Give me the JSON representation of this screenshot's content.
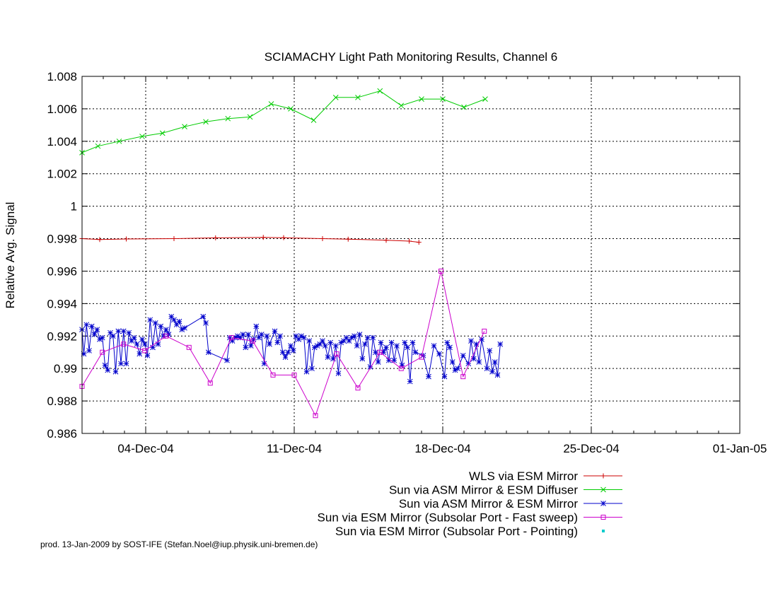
{
  "chart_data": {
    "type": "line",
    "title": "SCIAMACHY Light Path Monitoring Results, Channel 6",
    "xlabel": "",
    "ylabel": "Relative Avg. Signal",
    "x_is_date": true,
    "xlim": [
      "2004-12-01",
      "2005-01-01"
    ],
    "ylim": [
      0.986,
      1.008
    ],
    "yticks": [
      0.986,
      0.988,
      0.99,
      0.992,
      0.994,
      0.996,
      0.998,
      1,
      1.002,
      1.004,
      1.006,
      1.008
    ],
    "ytick_labels": [
      "0.986",
      "0.988",
      "0.99",
      "0.992",
      "0.994",
      "0.996",
      "0.998",
      "1",
      "1.002",
      "1.004",
      "1.006",
      "1.008"
    ],
    "xticks": [
      "2004-12-04",
      "2004-12-11",
      "2004-12-18",
      "2004-12-25",
      "2005-01-01"
    ],
    "xtick_labels": [
      "04-Dec-04",
      "11-Dec-04",
      "18-Dec-04",
      "25-Dec-04",
      "01-Jan-05"
    ],
    "grid": true,
    "legend_position": "bottom-right",
    "series": [
      {
        "name": "WLS via ESM Mirror",
        "color": "#cc0000",
        "marker": "plus",
        "points": [
          [
            "2004-12-01T00:00",
            0.998
          ],
          [
            "2004-12-01T20:00",
            0.99795
          ],
          [
            "2004-12-03T02:00",
            0.99798
          ],
          [
            "2004-12-05T08:00",
            0.998
          ],
          [
            "2004-12-07T07:00",
            0.99805
          ],
          [
            "2004-12-09T13:00",
            0.99808
          ],
          [
            "2004-12-10T12:00",
            0.99806
          ],
          [
            "2004-12-12T08:00",
            0.998
          ],
          [
            "2004-12-13T13:00",
            0.99797
          ],
          [
            "2004-12-15T08:00",
            0.9979
          ],
          [
            "2004-12-16T10:00",
            0.99785
          ],
          [
            "2004-12-16T21:00",
            0.99778
          ]
        ]
      },
      {
        "name": "Sun via ASM Mirror & ESM Diffuser",
        "color": "#00cc00",
        "marker": "x",
        "points": [
          [
            "2004-12-01T00:00",
            1.0033
          ],
          [
            "2004-12-01T18:00",
            1.0037
          ],
          [
            "2004-12-02T18:00",
            1.004
          ],
          [
            "2004-12-03T20:00",
            1.0043
          ],
          [
            "2004-12-04T19:00",
            1.0045
          ],
          [
            "2004-12-05T20:00",
            1.0049
          ],
          [
            "2004-12-06T20:00",
            1.0052
          ],
          [
            "2004-12-07T21:00",
            1.0054
          ],
          [
            "2004-12-08T22:00",
            1.0055
          ],
          [
            "2004-12-09T22:00",
            1.0063
          ],
          [
            "2004-12-10T20:00",
            1.006
          ],
          [
            "2004-12-11T22:00",
            1.0053
          ],
          [
            "2004-12-12T23:00",
            1.0067
          ],
          [
            "2004-12-14T00:00",
            1.0067
          ],
          [
            "2004-12-15T01:00",
            1.0071
          ],
          [
            "2004-12-16T01:00",
            1.0062
          ],
          [
            "2004-12-17T00:00",
            1.0066
          ],
          [
            "2004-12-18T00:00",
            1.0066
          ],
          [
            "2004-12-19T00:00",
            1.0061
          ],
          [
            "2004-12-20T00:00",
            1.0066
          ]
        ]
      },
      {
        "name": "Sun via ASM Mirror & ESM Mirror",
        "color": "#0000cc",
        "marker": "star",
        "points": [
          [
            "2004-12-01T00:00",
            0.9924
          ],
          [
            "2004-12-01T02:00",
            0.9909
          ],
          [
            "2004-12-01T05:00",
            0.9927
          ],
          [
            "2004-12-01T08:00",
            0.9911
          ],
          [
            "2004-12-01T11:00",
            0.9926
          ],
          [
            "2004-12-01T14:00",
            0.9921
          ],
          [
            "2004-12-01T17:00",
            0.9924
          ],
          [
            "2004-12-01T20:00",
            0.9918
          ],
          [
            "2004-12-01T23:00",
            0.9919
          ],
          [
            "2004-12-02T02:00",
            0.9902
          ],
          [
            "2004-12-02T05:00",
            0.9899
          ],
          [
            "2004-12-02T08:00",
            0.9922
          ],
          [
            "2004-12-02T11:00",
            0.992
          ],
          [
            "2004-12-02T14:00",
            0.9898
          ],
          [
            "2004-12-02T17:00",
            0.9923
          ],
          [
            "2004-12-02T20:00",
            0.9903
          ],
          [
            "2004-12-02T23:00",
            0.9923
          ],
          [
            "2004-12-03T02:00",
            0.9903
          ],
          [
            "2004-12-03T05:00",
            0.9922
          ],
          [
            "2004-12-03T08:00",
            0.9917
          ],
          [
            "2004-12-03T11:00",
            0.9919
          ],
          [
            "2004-12-03T14:00",
            0.9915
          ],
          [
            "2004-12-03T17:00",
            0.9909
          ],
          [
            "2004-12-03T20:00",
            0.9918
          ],
          [
            "2004-12-03T23:00",
            0.9915
          ],
          [
            "2004-12-04T02:00",
            0.9908
          ],
          [
            "2004-12-04T05:00",
            0.993
          ],
          [
            "2004-12-04T08:00",
            0.9913
          ],
          [
            "2004-12-04T11:00",
            0.9928
          ],
          [
            "2004-12-04T14:00",
            0.9915
          ],
          [
            "2004-12-04T17:00",
            0.9926
          ],
          [
            "2004-12-04T20:00",
            0.992
          ],
          [
            "2004-12-04T23:00",
            0.9924
          ],
          [
            "2004-12-05T02:00",
            0.9921
          ],
          [
            "2004-12-05T05:00",
            0.9932
          ],
          [
            "2004-12-05T08:00",
            0.993
          ],
          [
            "2004-12-05T11:00",
            0.9927
          ],
          [
            "2004-12-05T14:00",
            0.9929
          ],
          [
            "2004-12-05T17:00",
            0.9924
          ],
          [
            "2004-12-05T20:00",
            0.9925
          ],
          [
            "2004-12-06T17:00",
            0.9932
          ],
          [
            "2004-12-06T20:00",
            0.9928
          ],
          [
            "2004-12-06T23:00",
            0.991
          ],
          [
            "2004-12-07T20:00",
            0.9905
          ],
          [
            "2004-12-07T23:00",
            0.9919
          ],
          [
            "2004-12-08T02:00",
            0.9917
          ],
          [
            "2004-12-08T05:00",
            0.9919
          ],
          [
            "2004-12-08T08:00",
            0.992
          ],
          [
            "2004-12-08T11:00",
            0.9919
          ],
          [
            "2004-12-08T14:00",
            0.9921
          ],
          [
            "2004-12-08T17:00",
            0.9913
          ],
          [
            "2004-12-08T20:00",
            0.9921
          ],
          [
            "2004-12-08T23:00",
            0.9914
          ],
          [
            "2004-12-09T02:00",
            0.9918
          ],
          [
            "2004-12-09T05:00",
            0.9926
          ],
          [
            "2004-12-09T08:00",
            0.9919
          ],
          [
            "2004-12-09T11:00",
            0.9921
          ],
          [
            "2004-12-09T14:00",
            0.9903
          ],
          [
            "2004-12-09T17:00",
            0.992
          ],
          [
            "2004-12-09T20:00",
            0.9915
          ],
          [
            "2004-12-10T02:00",
            0.9923
          ],
          [
            "2004-12-10T05:00",
            0.9916
          ],
          [
            "2004-12-10T08:00",
            0.992
          ],
          [
            "2004-12-10T11:00",
            0.991
          ],
          [
            "2004-12-10T14:00",
            0.9907
          ],
          [
            "2004-12-10T17:00",
            0.991
          ],
          [
            "2004-12-10T20:00",
            0.9914
          ],
          [
            "2004-12-10T23:00",
            0.9911
          ],
          [
            "2004-12-11T02:00",
            0.992
          ],
          [
            "2004-12-11T05:00",
            0.9918
          ],
          [
            "2004-12-11T08:00",
            0.992
          ],
          [
            "2004-12-11T11:00",
            0.9919
          ],
          [
            "2004-12-11T14:00",
            0.9898
          ],
          [
            "2004-12-11T17:00",
            0.9917
          ],
          [
            "2004-12-11T20:00",
            0.99
          ],
          [
            "2004-12-11T23:00",
            0.9913
          ],
          [
            "2004-12-12T02:00",
            0.9914
          ],
          [
            "2004-12-12T05:00",
            0.9915
          ],
          [
            "2004-12-12T08:00",
            0.9917
          ],
          [
            "2004-12-12T11:00",
            0.9914
          ],
          [
            "2004-12-12T14:00",
            0.9907
          ],
          [
            "2004-12-12T17:00",
            0.9916
          ],
          [
            "2004-12-12T20:00",
            0.9906
          ],
          [
            "2004-12-12T23:00",
            0.9914
          ],
          [
            "2004-12-13T02:00",
            0.9897
          ],
          [
            "2004-12-13T05:00",
            0.9916
          ],
          [
            "2004-12-13T08:00",
            0.9917
          ],
          [
            "2004-12-13T11:00",
            0.9919
          ],
          [
            "2004-12-13T14:00",
            0.9917
          ],
          [
            "2004-12-13T17:00",
            0.9919
          ],
          [
            "2004-12-13T20:00",
            0.992
          ],
          [
            "2004-12-13T23:00",
            0.9914
          ],
          [
            "2004-12-14T02:00",
            0.9921
          ],
          [
            "2004-12-14T05:00",
            0.9906
          ],
          [
            "2004-12-14T08:00",
            0.9915
          ],
          [
            "2004-12-14T11:00",
            0.9919
          ],
          [
            "2004-12-14T14:00",
            0.9901
          ],
          [
            "2004-12-14T17:00",
            0.9919
          ],
          [
            "2004-12-14T20:00",
            0.991
          ],
          [
            "2004-12-14T23:00",
            0.9904
          ],
          [
            "2004-12-15T02:00",
            0.9916
          ],
          [
            "2004-12-15T05:00",
            0.991
          ],
          [
            "2004-12-15T08:00",
            0.9913
          ],
          [
            "2004-12-15T11:00",
            0.9905
          ],
          [
            "2004-12-15T14:00",
            0.9916
          ],
          [
            "2004-12-15T17:00",
            0.9905
          ],
          [
            "2004-12-15T20:00",
            0.9914
          ],
          [
            "2004-12-16T02:00",
            0.9902
          ],
          [
            "2004-12-16T05:00",
            0.9916
          ],
          [
            "2004-12-16T08:00",
            0.9913
          ],
          [
            "2004-12-16T11:00",
            0.9892
          ],
          [
            "2004-12-16T14:00",
            0.9916
          ],
          [
            "2004-12-16T17:00",
            0.991
          ],
          [
            "2004-12-17T02:00",
            0.9908
          ],
          [
            "2004-12-17T08:00",
            0.9895
          ],
          [
            "2004-12-17T14:00",
            0.9914
          ],
          [
            "2004-12-17T20:00",
            0.9909
          ],
          [
            "2004-12-18T02:00",
            0.9895
          ],
          [
            "2004-12-18T05:00",
            0.9916
          ],
          [
            "2004-12-18T08:00",
            0.9913
          ],
          [
            "2004-12-18T11:00",
            0.9904
          ],
          [
            "2004-12-18T14:00",
            0.9899
          ],
          [
            "2004-12-18T17:00",
            0.99
          ],
          [
            "2004-12-18T23:00",
            0.9908
          ],
          [
            "2004-12-19T05:00",
            0.9903
          ],
          [
            "2004-12-19T08:00",
            0.9917
          ],
          [
            "2004-12-19T11:00",
            0.9906
          ],
          [
            "2004-12-19T14:00",
            0.9915
          ],
          [
            "2004-12-19T17:00",
            0.9904
          ],
          [
            "2004-12-19T20:00",
            0.9918
          ],
          [
            "2004-12-20T02:00",
            0.99
          ],
          [
            "2004-12-20T05:00",
            0.9911
          ],
          [
            "2004-12-20T08:00",
            0.9898
          ],
          [
            "2004-12-20T11:00",
            0.9904
          ],
          [
            "2004-12-20T14:00",
            0.9896
          ],
          [
            "2004-12-20T17:00",
            0.9915
          ]
        ]
      },
      {
        "name": "Sun via ESM Mirror (Subsolar Port - Fast sweep)",
        "color": "#cc00cc",
        "marker": "square",
        "points": [
          [
            "2004-12-01T00:00",
            0.9889
          ],
          [
            "2004-12-01T23:00",
            0.991
          ],
          [
            "2004-12-02T23:00",
            0.9915
          ],
          [
            "2004-12-03T23:00",
            0.9911
          ],
          [
            "2004-12-04T23:00",
            0.992
          ],
          [
            "2004-12-06T01:00",
            0.9913
          ],
          [
            "2004-12-07T01:00",
            0.9891
          ],
          [
            "2004-12-08T01:00",
            0.9919
          ],
          [
            "2004-12-09T01:00",
            0.9917
          ],
          [
            "2004-12-10T00:00",
            0.9896
          ],
          [
            "2004-12-11T00:00",
            0.9896
          ],
          [
            "2004-12-12T00:00",
            0.9871
          ],
          [
            "2004-12-13T00:00",
            0.9909
          ],
          [
            "2004-12-14T00:00",
            0.9888
          ],
          [
            "2004-12-15T01:00",
            0.991
          ],
          [
            "2004-12-16T01:00",
            0.99
          ],
          [
            "2004-12-17T00:00",
            0.9907
          ],
          [
            "2004-12-17T22:00",
            0.996
          ],
          [
            "2004-12-18T23:00",
            0.9895
          ],
          [
            "2004-12-19T23:00",
            0.9923
          ]
        ]
      },
      {
        "name": "Sun via ESM Mirror (Subsolar Port - Pointing)",
        "color": "#00cccc",
        "marker": "dot",
        "points": []
      }
    ]
  },
  "footer": {
    "text": "prod. 13-Jan-2009 by SOST-IFE (Stefan.Noel@iup.physik.uni-bremen.de)"
  }
}
